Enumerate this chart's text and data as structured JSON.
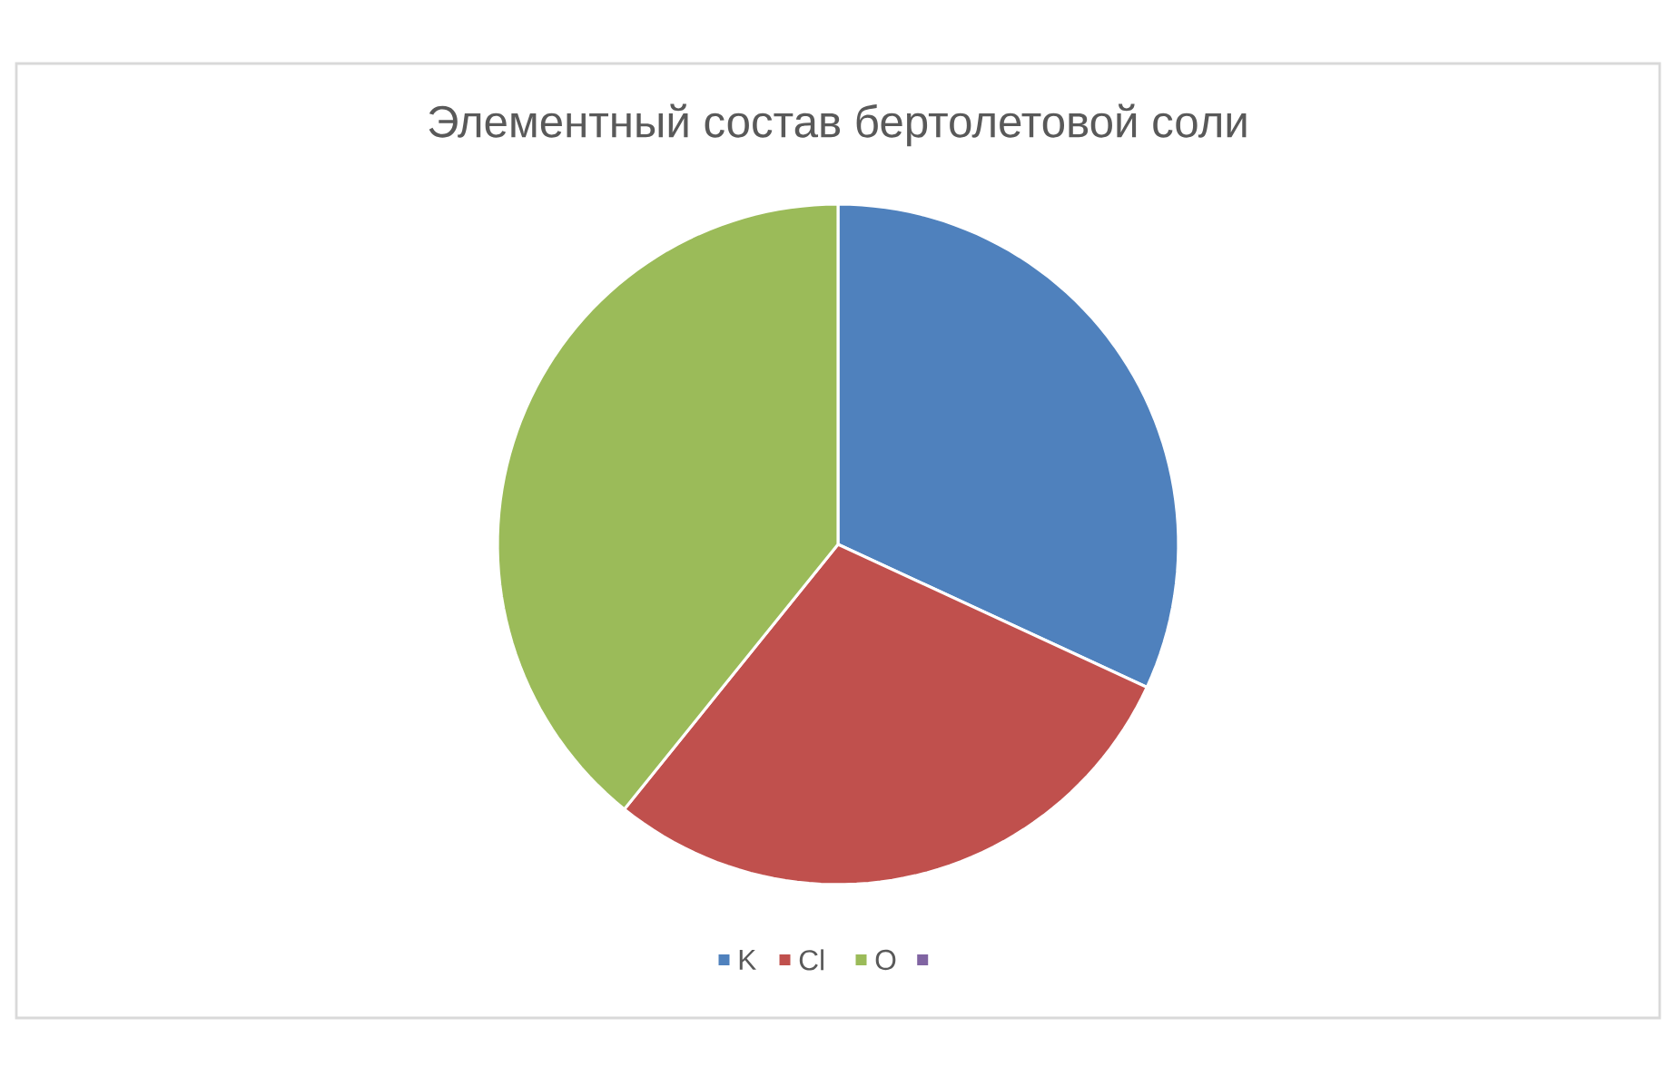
{
  "chart_data": {
    "type": "pie",
    "title": "Элементный состав бертолетовой соли",
    "categories": [
      "K",
      "Cl",
      "O",
      null
    ],
    "values": [
      31.9,
      28.9,
      39.2,
      0
    ],
    "colors": [
      "#4f81bd",
      "#c0504d",
      "#9bbb59",
      "#8064a2"
    ],
    "legend": "bottom"
  }
}
